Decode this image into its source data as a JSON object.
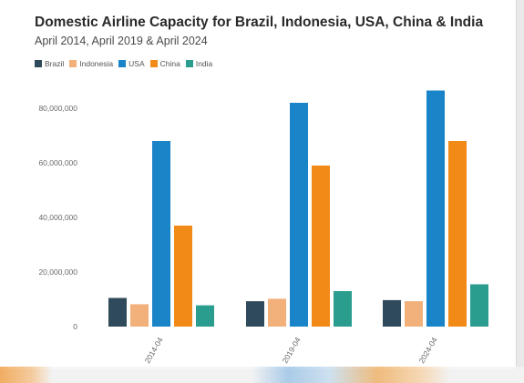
{
  "chart_data": {
    "type": "bar",
    "title": "Domestic Airline Capacity for Brazil, Indonesia, USA, China & India",
    "subtitle": "April 2014, April 2019 & April 2024",
    "categories": [
      "2014-04",
      "2019-04",
      "2024-04"
    ],
    "series": [
      {
        "name": "Brazil",
        "color": "#2f4a5a",
        "values": [
          10500000,
          9300000,
          9700000
        ]
      },
      {
        "name": "Indonesia",
        "color": "#f2b07a",
        "values": [
          8200000,
          10200000,
          9300000
        ]
      },
      {
        "name": "USA",
        "color": "#1a84c8",
        "values": [
          68000000,
          82000000,
          86500000
        ]
      },
      {
        "name": "China",
        "color": "#f28a18",
        "values": [
          37000000,
          59000000,
          68000000
        ]
      },
      {
        "name": "India",
        "color": "#2a9d8f",
        "values": [
          7800000,
          13000000,
          15500000
        ]
      }
    ],
    "yticks": [
      "0",
      "20,000,000",
      "40,000,000",
      "60,000,000",
      "80,000,000"
    ],
    "ylim": [
      0,
      90000000
    ],
    "legend_position": "top-left",
    "grid": false
  }
}
